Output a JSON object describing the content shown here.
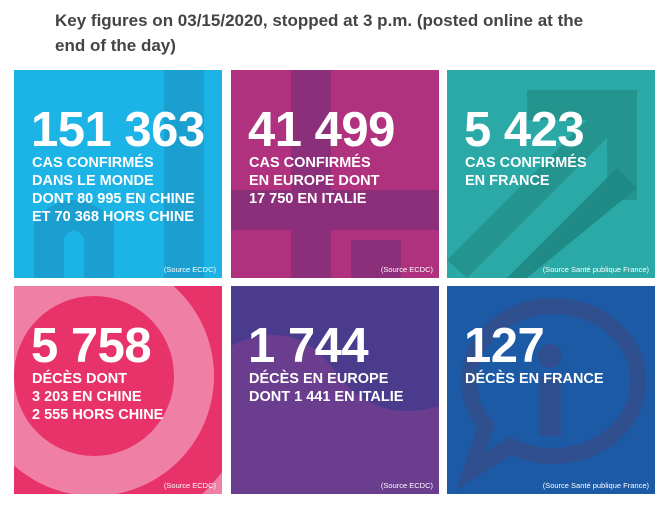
{
  "header": {
    "title": "Key figures on 03/15/2020, stopped at 3 p.m. (posted online at the end of the day)"
  },
  "tiles": [
    {
      "number": "151 363",
      "lines": [
        "CAS CONFIRMÉS",
        "DANS LE MONDE",
        "DONT 80 995 EN CHINE",
        "ET 70 368 HORS CHINE"
      ],
      "source": "(Source ECDC)"
    },
    {
      "number": "41 499",
      "lines": [
        "CAS CONFIRMÉS",
        "EN EUROPE DONT",
        "17 750 EN ITALIE"
      ],
      "source": "(Source ECDC)"
    },
    {
      "number": "5 423",
      "lines": [
        "CAS CONFIRMÉS",
        "EN FRANCE"
      ],
      "source": "(Source Santé publique France)"
    },
    {
      "number": "5 758",
      "lines": [
        "DÉCÈS DONT",
        "3 203 EN CHINE",
        "2 555 HORS CHINE"
      ],
      "source": "(Source ECDC)"
    },
    {
      "number": "1 744",
      "lines": [
        "DÉCÈS EN EUROPE",
        "DONT 1 441 EN ITALIE"
      ],
      "source": "(Source ECDC)"
    },
    {
      "number": "127",
      "lines": [
        "DÉCÈS EN FRANCE"
      ],
      "source": "(Source Santé publique France)"
    }
  ]
}
